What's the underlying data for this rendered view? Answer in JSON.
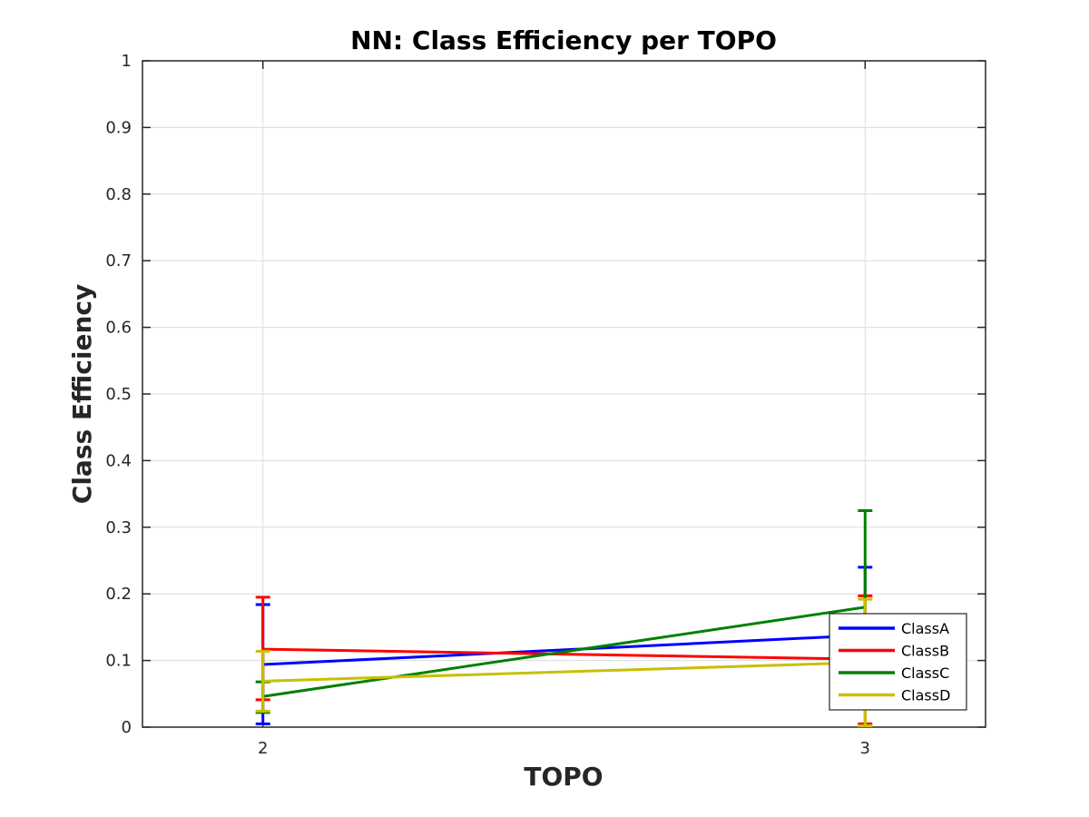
{
  "chart_data": {
    "type": "line",
    "title": "NN: Class Efficiency per TOPO",
    "xlabel": "TOPO",
    "ylabel": "Class Efficiency",
    "x": [
      2,
      3
    ],
    "xlim": [
      1.8,
      3.2
    ],
    "ylim": [
      0,
      1
    ],
    "xticks": [
      "2",
      "3"
    ],
    "yticks": [
      "0",
      "0.1",
      "0.2",
      "0.3",
      "0.4",
      "0.5",
      "0.6",
      "0.7",
      "0.8",
      "0.9",
      "1"
    ],
    "grid": true,
    "legend_position": "bottom-right",
    "series": [
      {
        "name": "ClassA",
        "color": "#0000ff",
        "values": [
          0.094,
          0.138
        ],
        "error_low": [
          0.005,
          0.036
        ],
        "error_high": [
          0.184,
          0.24
        ]
      },
      {
        "name": "ClassB",
        "color": "#ff0000",
        "values": [
          0.117,
          0.102
        ],
        "error_low": [
          0.041,
          0.005
        ],
        "error_high": [
          0.195,
          0.197
        ]
      },
      {
        "name": "ClassC",
        "color": "#008000",
        "values": [
          0.046,
          0.18
        ],
        "error_low": [
          0.022,
          0.035
        ],
        "error_high": [
          0.068,
          0.325
        ]
      },
      {
        "name": "ClassD",
        "color": "#c8c000",
        "values": [
          0.069,
          0.097
        ],
        "error_low": [
          0.024,
          0.002
        ],
        "error_high": [
          0.114,
          0.192
        ]
      }
    ]
  }
}
